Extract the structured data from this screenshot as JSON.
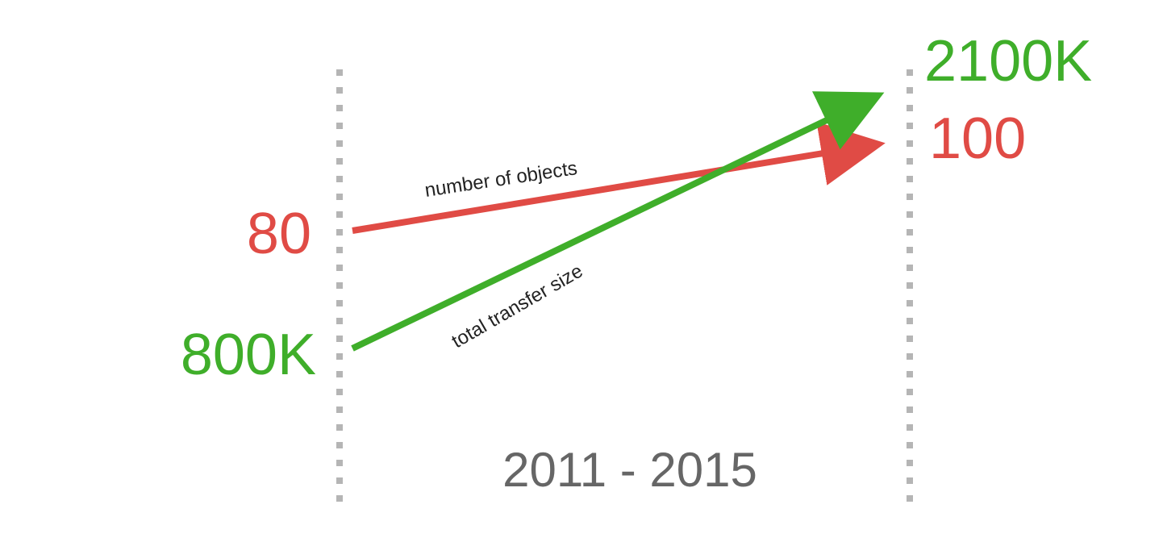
{
  "chart_data": {
    "type": "line",
    "period_label": "2011 - 2015",
    "x": [
      "2011",
      "2015"
    ],
    "series": [
      {
        "name": "number of objects",
        "start_label": "80",
        "end_label": "100",
        "values": [
          80,
          100
        ],
        "color": "#e04b45"
      },
      {
        "name": "total transfer size",
        "start_label": "800K",
        "end_label": "2100K",
        "values": [
          800,
          2100
        ],
        "color": "#3fae2a"
      }
    ],
    "axis_color": "#b5b5b5",
    "grid": false,
    "legend": "none"
  }
}
